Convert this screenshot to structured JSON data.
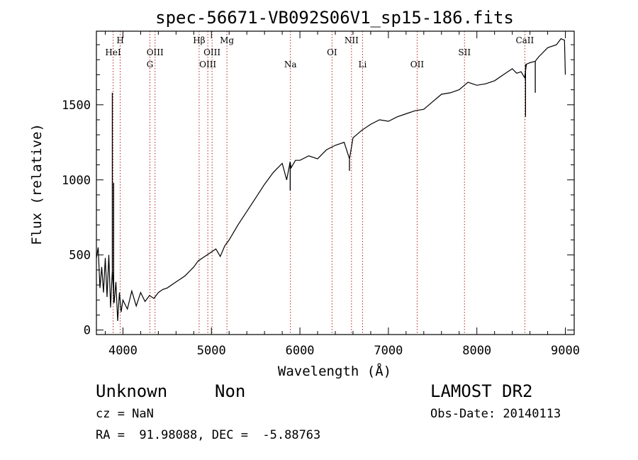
{
  "chart_data": {
    "type": "line",
    "title": "spec-56671-VB092S06V1_sp15-186.fits",
    "xlabel": "Wavelength (Å)",
    "ylabel": "Flux (relative)",
    "xlim": [
      3700,
      9100
    ],
    "ylim": [
      -30,
      1990
    ],
    "xticks": [
      4000,
      5000,
      6000,
      7000,
      8000,
      9000
    ],
    "yticks": [
      0,
      500,
      1000,
      1500
    ],
    "line_color": "#000000",
    "marker_color": "#b22222",
    "grid": false,
    "spectrum": {
      "name": "",
      "x": [
        3700,
        3720,
        3740,
        3760,
        3780,
        3800,
        3820,
        3840,
        3860,
        3880,
        3900,
        3920,
        3940,
        3960,
        3980,
        4000,
        4050,
        4100,
        4150,
        4200,
        4250,
        4300,
        4350,
        4400,
        4450,
        4500,
        4600,
        4700,
        4800,
        4850,
        4900,
        4950,
        5000,
        5050,
        5100,
        5150,
        5200,
        5300,
        5400,
        5500,
        5600,
        5700,
        5800,
        5850,
        5890,
        5900,
        5950,
        6000,
        6100,
        6200,
        6300,
        6400,
        6500,
        6560,
        6600,
        6700,
        6800,
        6900,
        7000,
        7100,
        7200,
        7300,
        7400,
        7500,
        7600,
        7700,
        7800,
        7900,
        8000,
        8100,
        8200,
        8300,
        8400,
        8450,
        8500,
        8540,
        8560,
        8600,
        8660,
        8700,
        8800,
        8900,
        8950,
        8990,
        9000
      ],
      "y": [
        480,
        550,
        280,
        420,
        250,
        480,
        220,
        500,
        150,
        400,
        180,
        320,
        60,
        250,
        120,
        200,
        140,
        260,
        160,
        250,
        190,
        230,
        210,
        250,
        270,
        280,
        320,
        360,
        420,
        460,
        480,
        500,
        520,
        540,
        490,
        560,
        600,
        700,
        790,
        880,
        970,
        1050,
        1110,
        1000,
        1120,
        1080,
        1130,
        1130,
        1160,
        1140,
        1200,
        1230,
        1250,
        1140,
        1280,
        1330,
        1370,
        1400,
        1390,
        1420,
        1440,
        1460,
        1470,
        1520,
        1570,
        1580,
        1600,
        1650,
        1630,
        1640,
        1660,
        1700,
        1740,
        1710,
        1720,
        1680,
        1770,
        1780,
        1790,
        1820,
        1880,
        1900,
        1940,
        1930,
        1700
      ]
    },
    "spikes": [
      {
        "x": 3880,
        "y": 1580
      },
      {
        "x": 3895,
        "y": 980
      },
      {
        "x": 8550,
        "y": 1420
      },
      {
        "x": 8660,
        "y": 1580
      },
      {
        "x": 5890,
        "y": 930
      },
      {
        "x": 6560,
        "y": 1060
      }
    ],
    "lines": [
      {
        "label": "HeI",
        "x": 3889,
        "row": 2
      },
      {
        "label": "H",
        "x": 3969,
        "row": 1
      },
      {
        "label": "OIII",
        "x": 4363,
        "row": 2
      },
      {
        "label": "G",
        "x": 4305,
        "row": 3
      },
      {
        "label": "Hβ",
        "x": 4861,
        "row": 1
      },
      {
        "label": "OIII",
        "x": 5007,
        "row": 2
      },
      {
        "label": "OIII",
        "x": 4959,
        "row": 3
      },
      {
        "label": "Mg",
        "x": 5175,
        "row": 1
      },
      {
        "label": "Na",
        "x": 5893,
        "row": 3
      },
      {
        "label": "OI",
        "x": 6363,
        "row": 2
      },
      {
        "label": "NII",
        "x": 6583,
        "row": 1
      },
      {
        "label": "Li",
        "x": 6708,
        "row": 3
      },
      {
        "label": "OII",
        "x": 7325,
        "row": 3
      },
      {
        "label": "SII",
        "x": 7860,
        "row": 2
      },
      {
        "label": "CaII",
        "x": 8542,
        "row": 1
      }
    ]
  },
  "footer": {
    "object_class": "Unknown",
    "subclass": "Non",
    "survey": "LAMOST DR2",
    "redshift": "cz = NaN",
    "obs_date": "Obs-Date: 20140113",
    "coordinates": "RA =  91.98088, DEC =  -5.88763"
  }
}
